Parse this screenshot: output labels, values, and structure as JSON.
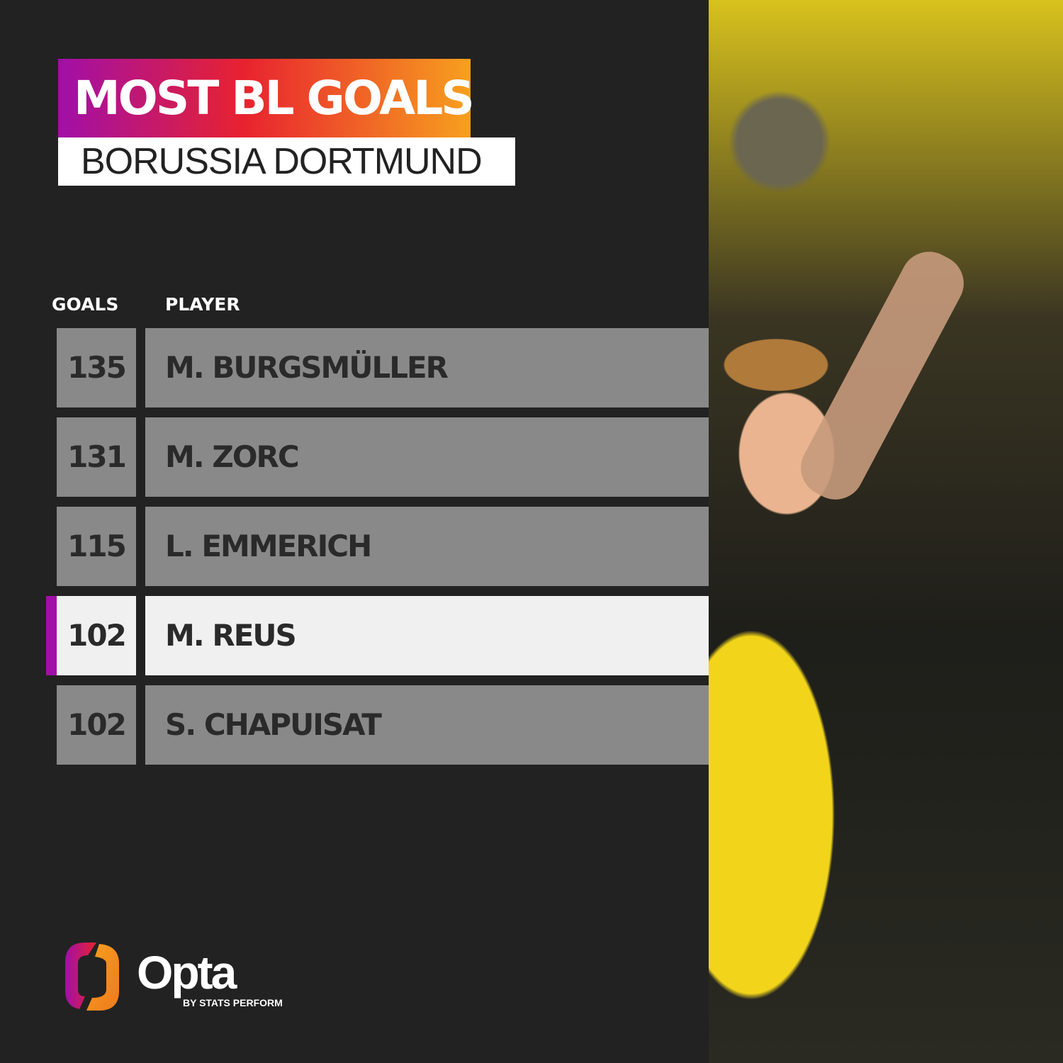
{
  "title": "MOST BL GOALS",
  "subtitle": "BORUSSIA DORTMUND",
  "table": {
    "headers": {
      "goals": "GOALS",
      "player": "PLAYER"
    },
    "rows": [
      {
        "goals": "135",
        "player": "M. BURGSMÜLLER",
        "highlighted": false
      },
      {
        "goals": "131",
        "player": "M. ZORC",
        "highlighted": false
      },
      {
        "goals": "115",
        "player": "L. EMMERICH",
        "highlighted": false
      },
      {
        "goals": "102",
        "player": "M. REUS",
        "highlighted": true
      },
      {
        "goals": "102",
        "player": "S. CHAPUISAT",
        "highlighted": false
      }
    ]
  },
  "colors": {
    "background": "#222222",
    "row": "#898989",
    "highlight_row": "#f0f0f0",
    "accent": "#a10fa8",
    "gradient": [
      "#a10fa8",
      "#e8222f",
      "#f7a01e"
    ]
  },
  "logo": {
    "name": "Opta",
    "tagline": "BY STATS PERFORM"
  }
}
